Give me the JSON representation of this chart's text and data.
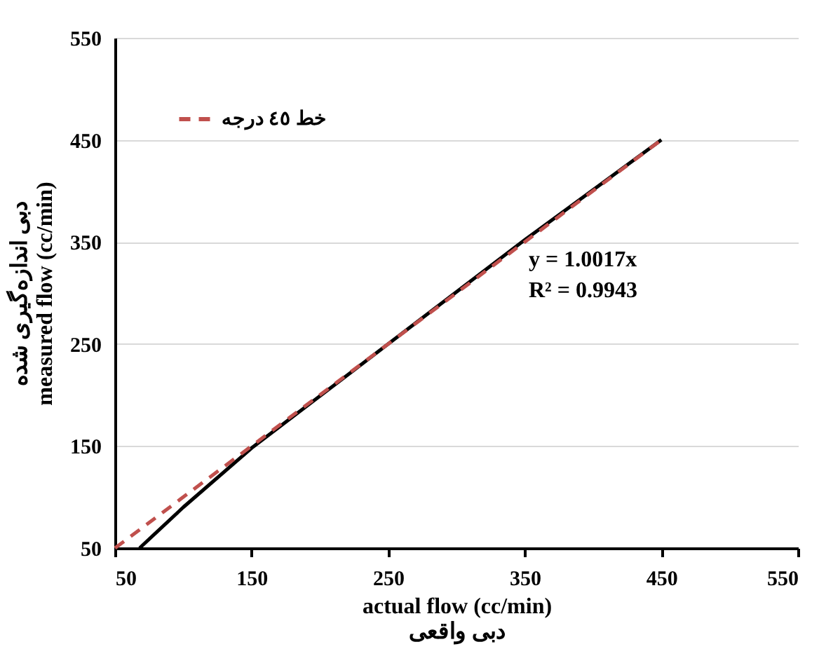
{
  "chart_data": {
    "type": "line",
    "xlabel": "actual flow (cc/min)\nدبی واقعی",
    "ylabel": "دبی اندازه‌گیری شده\nmeasured flow (cc/min)",
    "xlim": [
      50,
      550
    ],
    "xticks": [
      50,
      150,
      250,
      350,
      450,
      550
    ],
    "ylim": [
      50,
      550
    ],
    "yticks": [
      50,
      150,
      250,
      350,
      450,
      550
    ],
    "grid": "y",
    "legend": "top left",
    "marker": "none",
    "series": [
      {
        "color": "#000000",
        "line_style": "solid",
        "x": [
          68,
          100,
          150,
          250,
          350,
          450
        ],
        "values": [
          50,
          90,
          148,
          250,
          352,
          450
        ]
      },
      {
        "name": "خط ٤٥ درجه",
        "color": "#c0504d",
        "line_style": "dashed",
        "x": [
          50,
          450
        ],
        "values": [
          50,
          450
        ]
      }
    ],
    "annotations": [
      "y = 1.0017x",
      "R² = 0.9943"
    ]
  }
}
